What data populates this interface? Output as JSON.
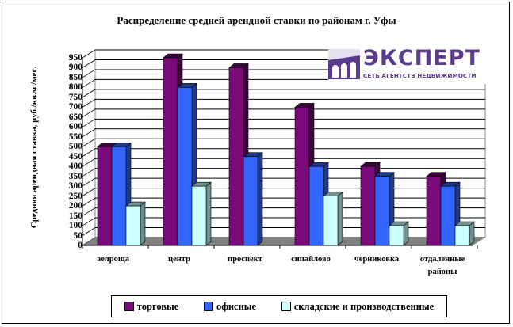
{
  "chart_data": {
    "type": "bar",
    "title": "Распределение средней арендной ставки по районам г. Уфы",
    "xlabel": "",
    "ylabel": "Средняя арендная ставка, руб./кв.м./мес.",
    "ylim": [
      0,
      950
    ],
    "yticks": [
      0,
      50,
      100,
      150,
      200,
      250,
      300,
      350,
      400,
      450,
      500,
      550,
      600,
      650,
      700,
      750,
      800,
      850,
      900,
      950
    ],
    "grid": true,
    "legend_position": "bottom",
    "categories": [
      "зелроща",
      "центр",
      "проспект",
      "сипайлово",
      "черниковка",
      "отдаленные районы"
    ],
    "series": [
      {
        "name": "торговые",
        "color": "#7a0a7a",
        "values": [
          500,
          950,
          900,
          700,
          400,
          350
        ]
      },
      {
        "name": "офисные",
        "color": "#3366ff",
        "values": [
          500,
          800,
          450,
          400,
          350,
          300
        ]
      },
      {
        "name": "складские и производственные",
        "color": "#ccffff",
        "values": [
          200,
          300,
          null,
          250,
          100,
          100
        ]
      }
    ]
  },
  "title": "Распределение средней арендной ставки по районам г. Уфы",
  "ylabel": "Средняя арендная ставка, руб./кв.м./мес.",
  "xlabels": [
    "зелроща",
    "центр",
    "проспект",
    "сипайлово",
    "черниковка",
    "отдаленные районы"
  ],
  "legend": [
    "торговые",
    "офисные",
    "складские и производственные"
  ],
  "logo": {
    "word": "ЭКСПЕРТ",
    "sub": "СЕТЬ АГЕНТСТВ НЕДВИЖИМОСТИ",
    "color": "#5b3b8c"
  }
}
